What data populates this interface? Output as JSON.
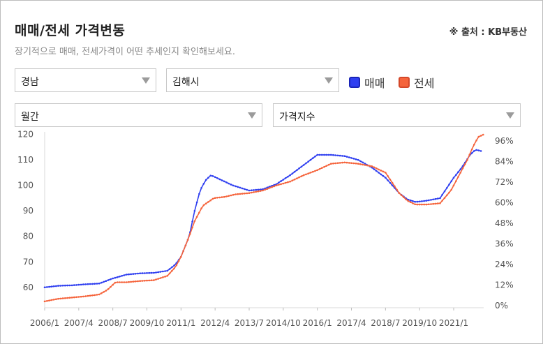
{
  "header": {
    "title": "매매/전세 가격변동",
    "source": "※ 출처 : KB부동산",
    "subtitle": "장기적으로 매매, 전세가격이 어떤 추세인지 확인해보세요."
  },
  "filters": {
    "region": "경남",
    "city": "김해시",
    "period": "월간",
    "metric": "가격지수"
  },
  "legend": [
    {
      "label": "매매",
      "color": "#2f3ff0"
    },
    {
      "label": "전세",
      "color": "#f5643c"
    }
  ],
  "chart_data": {
    "type": "line",
    "x_ticks": [
      "2006/1",
      "2007/4",
      "2008/7",
      "2009/10",
      "2011/1",
      "2012/4",
      "2013/7",
      "2014/10",
      "2016/1",
      "2017/4",
      "2018/7",
      "2019/10",
      "2021/1"
    ],
    "x_range": [
      "2006/1",
      "2022/2"
    ],
    "y_left": {
      "ticks": [
        60,
        70,
        80,
        90,
        100,
        110,
        120
      ],
      "range": [
        52,
        121
      ]
    },
    "y_right": {
      "ticks": [
        "0%",
        "12%",
        "24%",
        "36%",
        "48%",
        "60%",
        "72%",
        "84%",
        "96%"
      ]
    },
    "series": [
      {
        "name": "매매",
        "color": "#2f3ff0",
        "points": [
          [
            2006.0,
            60
          ],
          [
            2006.5,
            60.6
          ],
          [
            2007.0,
            60.8
          ],
          [
            2007.5,
            61.2
          ],
          [
            2008.0,
            61.5
          ],
          [
            2008.5,
            63.5
          ],
          [
            2009.0,
            65
          ],
          [
            2009.5,
            65.5
          ],
          [
            2010.0,
            65.7
          ],
          [
            2010.5,
            66.5
          ],
          [
            2010.8,
            69
          ],
          [
            2011.0,
            72
          ],
          [
            2011.3,
            80
          ],
          [
            2011.5,
            90
          ],
          [
            2011.7,
            98
          ],
          [
            2011.9,
            102
          ],
          [
            2012.1,
            104
          ],
          [
            2012.5,
            102
          ],
          [
            2012.9,
            100
          ],
          [
            2013.2,
            99
          ],
          [
            2013.5,
            98
          ],
          [
            2014.0,
            98.5
          ],
          [
            2014.5,
            100.5
          ],
          [
            2015.0,
            104
          ],
          [
            2015.5,
            108
          ],
          [
            2016.0,
            112
          ],
          [
            2016.5,
            112
          ],
          [
            2017.0,
            111.5
          ],
          [
            2017.5,
            110
          ],
          [
            2018.0,
            107
          ],
          [
            2018.5,
            103
          ],
          [
            2019.0,
            97
          ],
          [
            2019.3,
            94.5
          ],
          [
            2019.6,
            93.5
          ],
          [
            2020.0,
            94
          ],
          [
            2020.5,
            95
          ],
          [
            2021.0,
            103
          ],
          [
            2021.3,
            107
          ],
          [
            2021.6,
            112
          ],
          [
            2021.8,
            114
          ],
          [
            2022.0,
            113.5
          ]
        ]
      },
      {
        "name": "전세",
        "color": "#f5643c",
        "points": [
          [
            2006.0,
            54.5
          ],
          [
            2006.5,
            55.5
          ],
          [
            2007.0,
            56
          ],
          [
            2007.5,
            56.5
          ],
          [
            2008.0,
            57.2
          ],
          [
            2008.3,
            59
          ],
          [
            2008.6,
            62
          ],
          [
            2009.0,
            62
          ],
          [
            2009.5,
            62.5
          ],
          [
            2010.0,
            62.8
          ],
          [
            2010.5,
            64.5
          ],
          [
            2010.8,
            68
          ],
          [
            2011.0,
            72
          ],
          [
            2011.3,
            80
          ],
          [
            2011.5,
            86
          ],
          [
            2011.8,
            92
          ],
          [
            2012.2,
            95
          ],
          [
            2012.6,
            95.5
          ],
          [
            2013.0,
            96.5
          ],
          [
            2013.5,
            97
          ],
          [
            2014.0,
            98
          ],
          [
            2014.5,
            100
          ],
          [
            2015.0,
            101.5
          ],
          [
            2015.5,
            104
          ],
          [
            2016.0,
            106
          ],
          [
            2016.5,
            108.5
          ],
          [
            2017.0,
            109
          ],
          [
            2017.5,
            108.5
          ],
          [
            2018.0,
            107.5
          ],
          [
            2018.5,
            105
          ],
          [
            2019.0,
            97
          ],
          [
            2019.3,
            94
          ],
          [
            2019.6,
            92.5
          ],
          [
            2020.0,
            92.5
          ],
          [
            2020.5,
            93
          ],
          [
            2020.9,
            98
          ],
          [
            2021.2,
            104
          ],
          [
            2021.5,
            110
          ],
          [
            2021.7,
            115
          ],
          [
            2021.9,
            119
          ],
          [
            2022.1,
            120
          ]
        ]
      }
    ]
  }
}
